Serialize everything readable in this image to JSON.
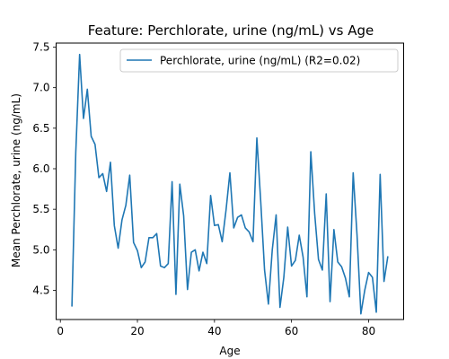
{
  "chart_data": {
    "type": "line",
    "title": "Feature: Perchlorate, urine (ng/mL) vs Age",
    "xlabel": "Age",
    "ylabel": "Mean Perchlorate, urine (ng/mL)",
    "xlim": [
      -1.1,
      89.1
    ],
    "ylim": [
      4.14,
      7.55
    ],
    "xticks": [
      0,
      20,
      40,
      60,
      80
    ],
    "xtick_labels": [
      "0",
      "20",
      "40",
      "60",
      "80"
    ],
    "yticks": [
      4.5,
      5.0,
      5.5,
      6.0,
      6.5,
      7.0,
      7.5
    ],
    "ytick_labels": [
      "4.5",
      "5.0",
      "5.5",
      "6.0",
      "6.5",
      "7.0",
      "7.5"
    ],
    "grid": false,
    "legend_position": "top-right",
    "series": [
      {
        "name": "Perchlorate, urine (ng/mL) (R2=0.02)",
        "color": "#1f77b4",
        "x": [
          3,
          4,
          5,
          6,
          7,
          8,
          9,
          10,
          11,
          12,
          13,
          14,
          15,
          16,
          17,
          18,
          19,
          20,
          21,
          22,
          23,
          24,
          25,
          26,
          27,
          28,
          29,
          30,
          31,
          32,
          33,
          34,
          35,
          36,
          37,
          38,
          39,
          40,
          41,
          42,
          43,
          44,
          45,
          46,
          47,
          48,
          49,
          50,
          51,
          52,
          53,
          54,
          55,
          56,
          57,
          58,
          59,
          60,
          61,
          62,
          63,
          64,
          65,
          66,
          67,
          68,
          69,
          70,
          71,
          72,
          73,
          74,
          75,
          76,
          77,
          78,
          79,
          80,
          81,
          82,
          83,
          84,
          85
        ],
        "values": [
          4.3,
          6.2,
          7.41,
          6.62,
          6.98,
          6.4,
          6.3,
          5.89,
          5.94,
          5.72,
          6.08,
          5.3,
          5.02,
          5.37,
          5.55,
          5.92,
          5.09,
          4.99,
          4.78,
          4.85,
          5.15,
          5.15,
          5.2,
          4.8,
          4.78,
          4.83,
          5.84,
          4.45,
          5.81,
          5.42,
          4.51,
          4.97,
          5.0,
          4.74,
          4.97,
          4.83,
          5.67,
          5.3,
          5.31,
          5.1,
          5.49,
          5.95,
          5.27,
          5.4,
          5.43,
          5.27,
          5.22,
          5.1,
          6.38,
          5.6,
          4.75,
          4.33,
          5.0,
          5.43,
          4.29,
          4.66,
          5.28,
          4.8,
          4.87,
          5.18,
          4.91,
          4.42,
          6.21,
          5.45,
          4.88,
          4.75,
          5.69,
          4.36,
          5.25,
          4.85,
          4.79,
          4.65,
          4.42,
          5.95,
          5.18,
          4.21,
          4.5,
          4.72,
          4.66,
          4.23,
          5.93,
          4.61,
          4.92
        ]
      }
    ]
  }
}
